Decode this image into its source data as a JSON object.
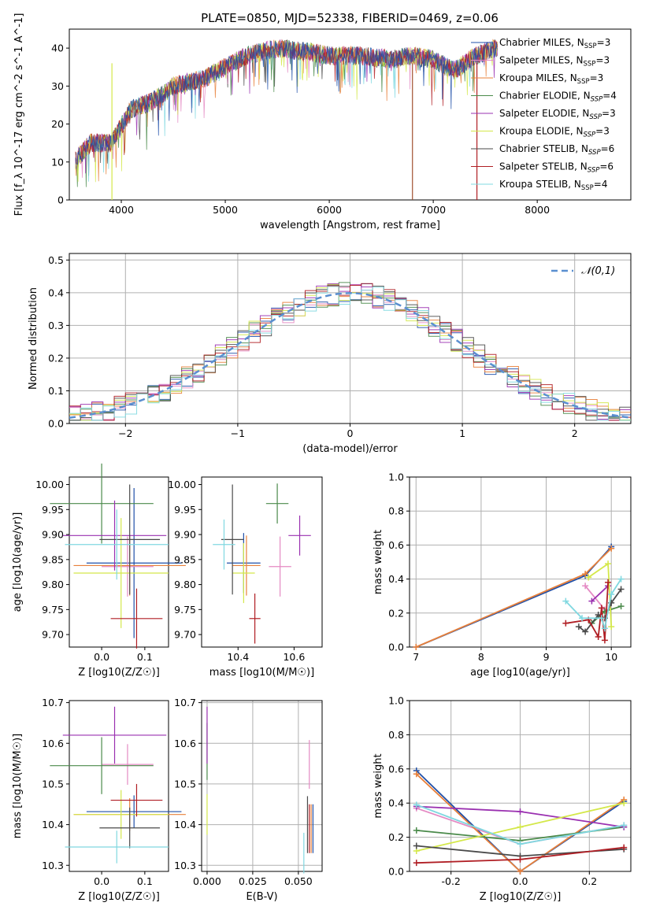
{
  "figure": {
    "title": "PLATE=0850, MJD=52338, FIBERID=0469, z=0.06"
  },
  "models": [
    {
      "name": "Chabrier MILES",
      "nssp": "3",
      "color": "#1f4fa8",
      "style": "normal"
    },
    {
      "name": "Salpeter MILES",
      "nssp": "3",
      "color": "#e48ac3",
      "style": "normal"
    },
    {
      "name": "Kroupa MILES",
      "nssp": "3",
      "color": "#e8803a",
      "style": "normal"
    },
    {
      "name": "Chabrier ELODIE",
      "nssp": "4",
      "color": "#4a8a4a",
      "style": "italic"
    },
    {
      "name": "Salpeter ELODIE",
      "nssp": "3",
      "color": "#9a30b0",
      "style": "italic"
    },
    {
      "name": "Kroupa ELODIE",
      "nssp": "3",
      "color": "#d4e84a",
      "style": "italic"
    },
    {
      "name": "Chabrier STELIB",
      "nssp": "6",
      "color": "#4a4a4a",
      "style": "italic"
    },
    {
      "name": "Salpeter STELIB",
      "nssp": "6",
      "color": "#b01e24",
      "style": "italic"
    },
    {
      "name": "Kroupa STELIB",
      "nssp": "4",
      "color": "#80d8e0",
      "style": "normal"
    }
  ],
  "chart_data": [
    {
      "id": "spectrum",
      "type": "line",
      "xlabel": "wavelength [Angstrom, rest frame]",
      "ylabel": "Flux [f_λ 10^-17 erg cm^-2 s^-1 A^-1]",
      "xlim": [
        3500,
        8900
      ],
      "ylim": [
        0,
        45
      ],
      "xticks": [
        4000,
        5000,
        6000,
        7000,
        8000
      ],
      "yticks": [
        0,
        10,
        20,
        30,
        40
      ],
      "legend": "right",
      "grid": false,
      "envelope": {
        "x": [
          3550,
          3700,
          3900,
          4100,
          4300,
          4500,
          4800,
          5000,
          5200,
          5500,
          5800,
          6000,
          6300,
          6600,
          6800,
          7000,
          7200,
          7400,
          7600
        ],
        "y": [
          10,
          15,
          15,
          24,
          26,
          30,
          32,
          35,
          38,
          40,
          39,
          38,
          38,
          37,
          38,
          37,
          34,
          38,
          40
        ]
      }
    },
    {
      "id": "residuals",
      "type": "histogram",
      "xlabel": "(data-model)/error",
      "ylabel": "Normed distribution",
      "xlim": [
        -2.5,
        2.5
      ],
      "ylim": [
        0,
        0.52
      ],
      "xticks": [
        -2,
        -1,
        0,
        1,
        2
      ],
      "yticks": [
        0.0,
        0.1,
        0.2,
        0.3,
        0.4,
        0.5
      ],
      "legend": "top-right",
      "legend_label": "𝒩(0,1)",
      "grid": true,
      "reference": "standard normal"
    },
    {
      "id": "age-vs-Z",
      "type": "scatter",
      "xlabel": "Z [log10(Z/Z☉)]",
      "ylabel": "age  [log10(age/yr)]",
      "xlim": [
        -0.075,
        0.155
      ],
      "ylim": [
        9.675,
        10.015
      ],
      "xticks": [
        0.0,
        0.1
      ],
      "yticks": [
        9.7,
        9.75,
        9.8,
        9.85,
        9.9,
        9.95,
        10.0
      ],
      "grid": false,
      "points": [
        {
          "x": 0.075,
          "y": 9.843,
          "xerr": 0.11,
          "yerr": 0.15
        },
        {
          "x": 0.06,
          "y": 9.836,
          "xerr": 0.06,
          "yerr": 0.06
        },
        {
          "x": 0.065,
          "y": 9.838,
          "xerr": 0.13,
          "yerr": 0.06
        },
        {
          "x": 0.0,
          "y": 9.962,
          "xerr": 0.12,
          "yerr": 0.08
        },
        {
          "x": 0.03,
          "y": 9.898,
          "xerr": 0.12,
          "yerr": 0.07
        },
        {
          "x": 0.045,
          "y": 9.823,
          "xerr": 0.11,
          "yerr": 0.11
        },
        {
          "x": 0.065,
          "y": 9.89,
          "xerr": 0.07,
          "yerr": 0.11
        },
        {
          "x": 0.081,
          "y": 9.732,
          "xerr": 0.06,
          "yerr": 0.06
        },
        {
          "x": 0.035,
          "y": 9.88,
          "xerr": 0.12,
          "yerr": 0.07
        }
      ]
    },
    {
      "id": "age-vs-mass",
      "type": "scatter",
      "xlabel": "mass [log10(M/M☉)]",
      "ylabel": "",
      "xlim": [
        10.27,
        10.7
      ],
      "ylim": [
        9.675,
        10.015
      ],
      "xticks": [
        10.4,
        10.6
      ],
      "yticks": [
        9.7,
        9.75,
        9.8,
        9.85,
        9.9,
        9.95,
        10.0
      ],
      "grid": false,
      "points": [
        {
          "x": 10.42,
          "y": 9.843,
          "xerr": 0.06,
          "yerr": 0.06
        },
        {
          "x": 10.55,
          "y": 9.836,
          "xerr": 0.04,
          "yerr": 0.06
        },
        {
          "x": 10.43,
          "y": 9.838,
          "xerr": 0.05,
          "yerr": 0.06
        },
        {
          "x": 10.54,
          "y": 9.962,
          "xerr": 0.04,
          "yerr": 0.04
        },
        {
          "x": 10.62,
          "y": 9.898,
          "xerr": 0.04,
          "yerr": 0.04
        },
        {
          "x": 10.42,
          "y": 9.823,
          "xerr": 0.04,
          "yerr": 0.06
        },
        {
          "x": 10.38,
          "y": 9.89,
          "xerr": 0.04,
          "yerr": 0.11
        },
        {
          "x": 10.46,
          "y": 9.732,
          "xerr": 0.02,
          "yerr": 0.05
        },
        {
          "x": 10.35,
          "y": 9.88,
          "xerr": 0.04,
          "yerr": 0.05
        }
      ]
    },
    {
      "id": "weight-vs-age",
      "type": "line",
      "xlabel": "age  [log10(age/yr)]",
      "ylabel": "mass weight",
      "xlim": [
        6.9,
        10.3
      ],
      "ylim": [
        0.0,
        1.0
      ],
      "xticks": [
        7,
        8,
        9,
        10
      ],
      "yticks": [
        0.0,
        0.2,
        0.4,
        0.6,
        0.8,
        1.0
      ],
      "grid": true,
      "series": [
        {
          "x": [
            7.0,
            9.6,
            10.0
          ],
          "y": [
            0.0,
            0.42,
            0.59
          ]
        },
        {
          "x": [
            9.6,
            9.9
          ],
          "y": [
            0.36,
            0.22
          ]
        },
        {
          "x": [
            7.0,
            9.6,
            10.0
          ],
          "y": [
            0.0,
            0.43,
            0.58
          ]
        },
        {
          "x": [
            9.7,
            9.9,
            10.15
          ],
          "y": [
            0.14,
            0.21,
            0.24
          ]
        },
        {
          "x": [
            9.7,
            9.95
          ],
          "y": [
            0.27,
            0.36
          ]
        },
        {
          "x": [
            9.65,
            9.95,
            10.0
          ],
          "y": [
            0.41,
            0.49,
            0.12
          ]
        },
        {
          "x": [
            9.5,
            9.6,
            9.8,
            9.9,
            10.0,
            10.15
          ],
          "y": [
            0.12,
            0.09,
            0.19,
            0.17,
            0.26,
            0.34
          ]
        },
        {
          "x": [
            9.3,
            9.65,
            9.8,
            9.85,
            9.9,
            9.95
          ],
          "y": [
            0.14,
            0.16,
            0.06,
            0.23,
            0.04,
            0.38
          ]
        },
        {
          "x": [
            9.3,
            9.55,
            9.85,
            9.9,
            10.0,
            10.15
          ],
          "y": [
            0.27,
            0.17,
            0.17,
            0.11,
            0.31,
            0.4
          ]
        }
      ]
    },
    {
      "id": "mass-vs-Z",
      "type": "scatter",
      "xlabel": "Z [log10(Z/Z☉)]",
      "ylabel": "mass [log10(M/M☉)]",
      "xlim": [
        -0.075,
        0.155
      ],
      "ylim": [
        10.285,
        10.705
      ],
      "xticks": [
        0.0,
        0.1
      ],
      "yticks": [
        10.3,
        10.4,
        10.5,
        10.6,
        10.7
      ],
      "grid": false,
      "points": [
        {
          "x": 0.075,
          "y": 10.432,
          "xerr": 0.11,
          "yerr": 0.04
        },
        {
          "x": 0.06,
          "y": 10.548,
          "xerr": 0.06,
          "yerr": 0.05
        },
        {
          "x": 0.065,
          "y": 10.425,
          "xerr": 0.13,
          "yerr": 0.04
        },
        {
          "x": 0.0,
          "y": 10.545,
          "xerr": 0.12,
          "yerr": 0.07
        },
        {
          "x": 0.03,
          "y": 10.62,
          "xerr": 0.12,
          "yerr": 0.07
        },
        {
          "x": 0.045,
          "y": 10.425,
          "xerr": 0.11,
          "yerr": 0.06
        },
        {
          "x": 0.065,
          "y": 10.392,
          "xerr": 0.07,
          "yerr": 0.05
        },
        {
          "x": 0.081,
          "y": 10.46,
          "xerr": 0.06,
          "yerr": 0.04
        },
        {
          "x": 0.035,
          "y": 10.345,
          "xerr": 0.12,
          "yerr": 0.04
        }
      ]
    },
    {
      "id": "mass-vs-EBV",
      "type": "scatter",
      "xlabel": "E(B-V)",
      "ylabel": "",
      "xlim": [
        -0.003,
        0.063
      ],
      "ylim": [
        10.285,
        10.705
      ],
      "xticks": [
        0.0,
        0.025,
        0.05
      ],
      "yticks": [
        10.3,
        10.4,
        10.5,
        10.6,
        10.7
      ],
      "grid": true,
      "points": [
        {
          "x": 0.058,
          "y": 10.39,
          "xerr": 0,
          "yerr": 0.06
        },
        {
          "x": 0.056,
          "y": 10.548,
          "xerr": 0,
          "yerr": 0.06
        },
        {
          "x": 0.057,
          "y": 10.39,
          "xerr": 0,
          "yerr": 0.06
        },
        {
          "x": 0.0,
          "y": 10.58,
          "xerr": 0,
          "yerr": 0.07
        },
        {
          "x": 0.0,
          "y": 10.62,
          "xerr": 0,
          "yerr": 0.07
        },
        {
          "x": 0.0,
          "y": 10.425,
          "xerr": 0,
          "yerr": 0.05
        },
        {
          "x": 0.055,
          "y": 10.4,
          "xerr": 0,
          "yerr": 0.07
        },
        {
          "x": 0.056,
          "y": 10.39,
          "xerr": 0,
          "yerr": 0.06
        },
        {
          "x": 0.053,
          "y": 10.33,
          "xerr": 0,
          "yerr": 0.05
        }
      ]
    },
    {
      "id": "weight-vs-Z",
      "type": "line",
      "xlabel": "Z [log10(Z/Z☉)]",
      "ylabel": "mass weight",
      "xlim": [
        -0.32,
        0.32
      ],
      "ylim": [
        0.0,
        1.0
      ],
      "xticks": [
        -0.2,
        0.0,
        0.2
      ],
      "yticks": [
        0.0,
        0.2,
        0.4,
        0.6,
        0.8,
        1.0
      ],
      "grid": true,
      "series": [
        {
          "x": [
            -0.3,
            0.0,
            0.3
          ],
          "y": [
            0.59,
            0.0,
            0.41
          ]
        },
        {
          "x": [
            -0.3,
            0.0,
            0.3
          ],
          "y": [
            0.37,
            0.16,
            0.27
          ]
        },
        {
          "x": [
            -0.3,
            0.0,
            0.3
          ],
          "y": [
            0.57,
            0.0,
            0.42
          ]
        },
        {
          "x": [
            -0.3,
            0.0,
            0.3
          ],
          "y": [
            0.24,
            0.18,
            0.26
          ]
        },
        {
          "x": [
            -0.3,
            0.0,
            0.3
          ],
          "y": [
            0.38,
            0.35,
            0.26
          ]
        },
        {
          "x": [
            -0.3,
            0.0,
            0.3
          ],
          "y": [
            0.12,
            0.26,
            0.4
          ]
        },
        {
          "x": [
            -0.3,
            0.0,
            0.3
          ],
          "y": [
            0.15,
            0.09,
            0.13
          ]
        },
        {
          "x": [
            -0.3,
            0.0,
            0.3
          ],
          "y": [
            0.05,
            0.07,
            0.14
          ]
        },
        {
          "x": [
            -0.3,
            0.0,
            0.3
          ],
          "y": [
            0.39,
            0.16,
            0.27
          ]
        }
      ]
    }
  ]
}
